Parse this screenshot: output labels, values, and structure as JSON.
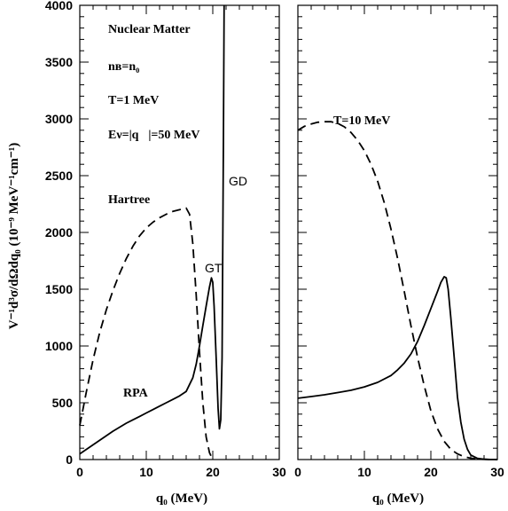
{
  "chart_data": {
    "type": "line",
    "ylabel": "V⁻¹d³σ/dΩdq₀  (10⁻⁹ MeV⁻¹cm⁻¹)",
    "ylim": [
      0,
      4000
    ],
    "yticks": [
      0,
      500,
      1000,
      1500,
      2000,
      2500,
      3000,
      3500,
      4000
    ],
    "shared_y_axis": true,
    "panels": [
      {
        "panel": "left",
        "xlabel": "q₀ (MeV)",
        "xlim": [
          0,
          30
        ],
        "xticks": [
          "0",
          "10",
          "20",
          "30"
        ],
        "annotations": [
          {
            "text": "Nuclear Matter"
          },
          {
            "text": "nʙ=n₀"
          },
          {
            "text": "T=1 MeV"
          },
          {
            "text": "Eν=|q⃗|=50 MeV"
          },
          {
            "text": "Hartree"
          },
          {
            "text": "RPA"
          },
          {
            "text": "GT"
          },
          {
            "text": "GD"
          }
        ],
        "series": [
          {
            "name": "Hartree",
            "style": "dashed",
            "x": [
              0,
              1,
              2,
              3,
              4,
              5,
              6,
              7,
              8,
              9,
              10,
              11,
              12,
              13,
              14,
              15,
              16,
              16.5,
              17,
              17.5,
              18,
              18.5,
              19,
              19.5,
              20
            ],
            "y": [
              300,
              600,
              880,
              1120,
              1320,
              1490,
              1640,
              1770,
              1880,
              1970,
              2040,
              2090,
              2130,
              2160,
              2185,
              2200,
              2215,
              2160,
              1900,
              1450,
              950,
              500,
              200,
              60,
              0
            ]
          },
          {
            "name": "RPA",
            "style": "solid",
            "x": [
              0,
              1,
              2,
              3,
              4,
              5,
              6,
              7,
              8,
              9,
              10,
              11,
              12,
              13,
              14,
              15,
              16,
              17,
              17.5,
              18,
              18.5,
              19,
              19.5,
              19.8,
              20,
              20.2,
              20.5,
              20.8,
              21.0,
              21.2,
              21.4,
              21.6,
              21.7
            ],
            "y": [
              50,
              90,
              130,
              170,
              210,
              250,
              285,
              320,
              350,
              380,
              410,
              440,
              470,
              500,
              530,
              560,
              600,
              720,
              840,
              1000,
              1180,
              1350,
              1520,
              1600,
              1560,
              1350,
              900,
              450,
              270,
              350,
              900,
              2800,
              4000
            ]
          }
        ]
      },
      {
        "panel": "right",
        "xlabel": "q₀ (MeV)",
        "xlim": [
          0,
          30
        ],
        "xticks": [
          "0",
          "10",
          "20",
          "30"
        ],
        "annotations": [
          {
            "text": "T=10 MeV"
          }
        ],
        "series": [
          {
            "name": "Hartree",
            "style": "dashed",
            "x": [
              0,
              1,
              2,
              3,
              4,
              5,
              6,
              7,
              8,
              9,
              10,
              11,
              12,
              13,
              14,
              15,
              16,
              17,
              18,
              19,
              20,
              21,
              22,
              23,
              24,
              25,
              26,
              27,
              28,
              29,
              30
            ],
            "y": [
              2900,
              2935,
              2955,
              2970,
              2975,
              2975,
              2960,
              2930,
              2880,
              2810,
              2720,
              2600,
              2450,
              2260,
              2030,
              1770,
              1480,
              1180,
              900,
              650,
              430,
              270,
              160,
              90,
              50,
              25,
              12,
              5,
              2,
              0,
              0
            ]
          },
          {
            "name": "RPA",
            "style": "solid",
            "x": [
              0,
              2,
              4,
              6,
              8,
              10,
              12,
              14,
              15,
              16,
              17,
              18,
              19,
              20,
              21,
              21.5,
              22,
              22.3,
              22.6,
              23,
              23.5,
              24,
              24.5,
              25,
              25.5,
              26,
              27,
              28,
              29,
              30
            ],
            "y": [
              540,
              555,
              570,
              590,
              610,
              640,
              680,
              740,
              790,
              850,
              930,
              1040,
              1180,
              1330,
              1480,
              1560,
              1610,
              1600,
              1500,
              1250,
              900,
              550,
              330,
              180,
              90,
              40,
              10,
              3,
              0,
              0
            ]
          }
        ]
      }
    ]
  }
}
